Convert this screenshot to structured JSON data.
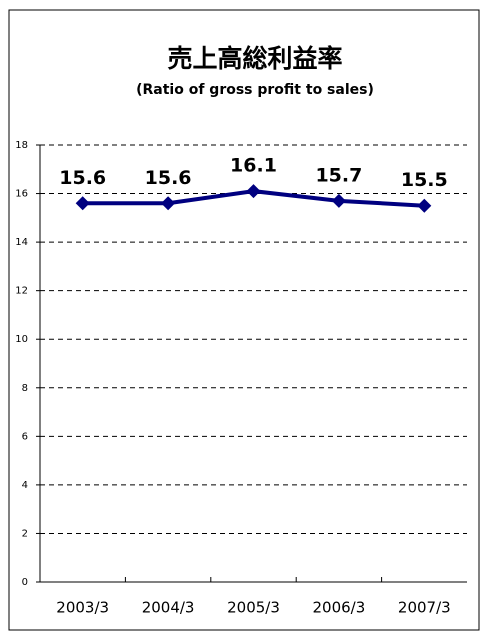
{
  "chart_data": {
    "type": "line",
    "title": "売上高総利益率",
    "subtitle": "(Ratio of gross profit to sales)",
    "categories": [
      "2003/3",
      "2004/3",
      "2005/3",
      "2006/3",
      "2007/3"
    ],
    "values": [
      15.6,
      15.6,
      16.1,
      15.7,
      15.5
    ],
    "color": "#000080",
    "ylim": [
      0,
      18
    ],
    "yticks": [
      0,
      2,
      4,
      6,
      8,
      10,
      12,
      14,
      16,
      18
    ],
    "grid": true
  }
}
